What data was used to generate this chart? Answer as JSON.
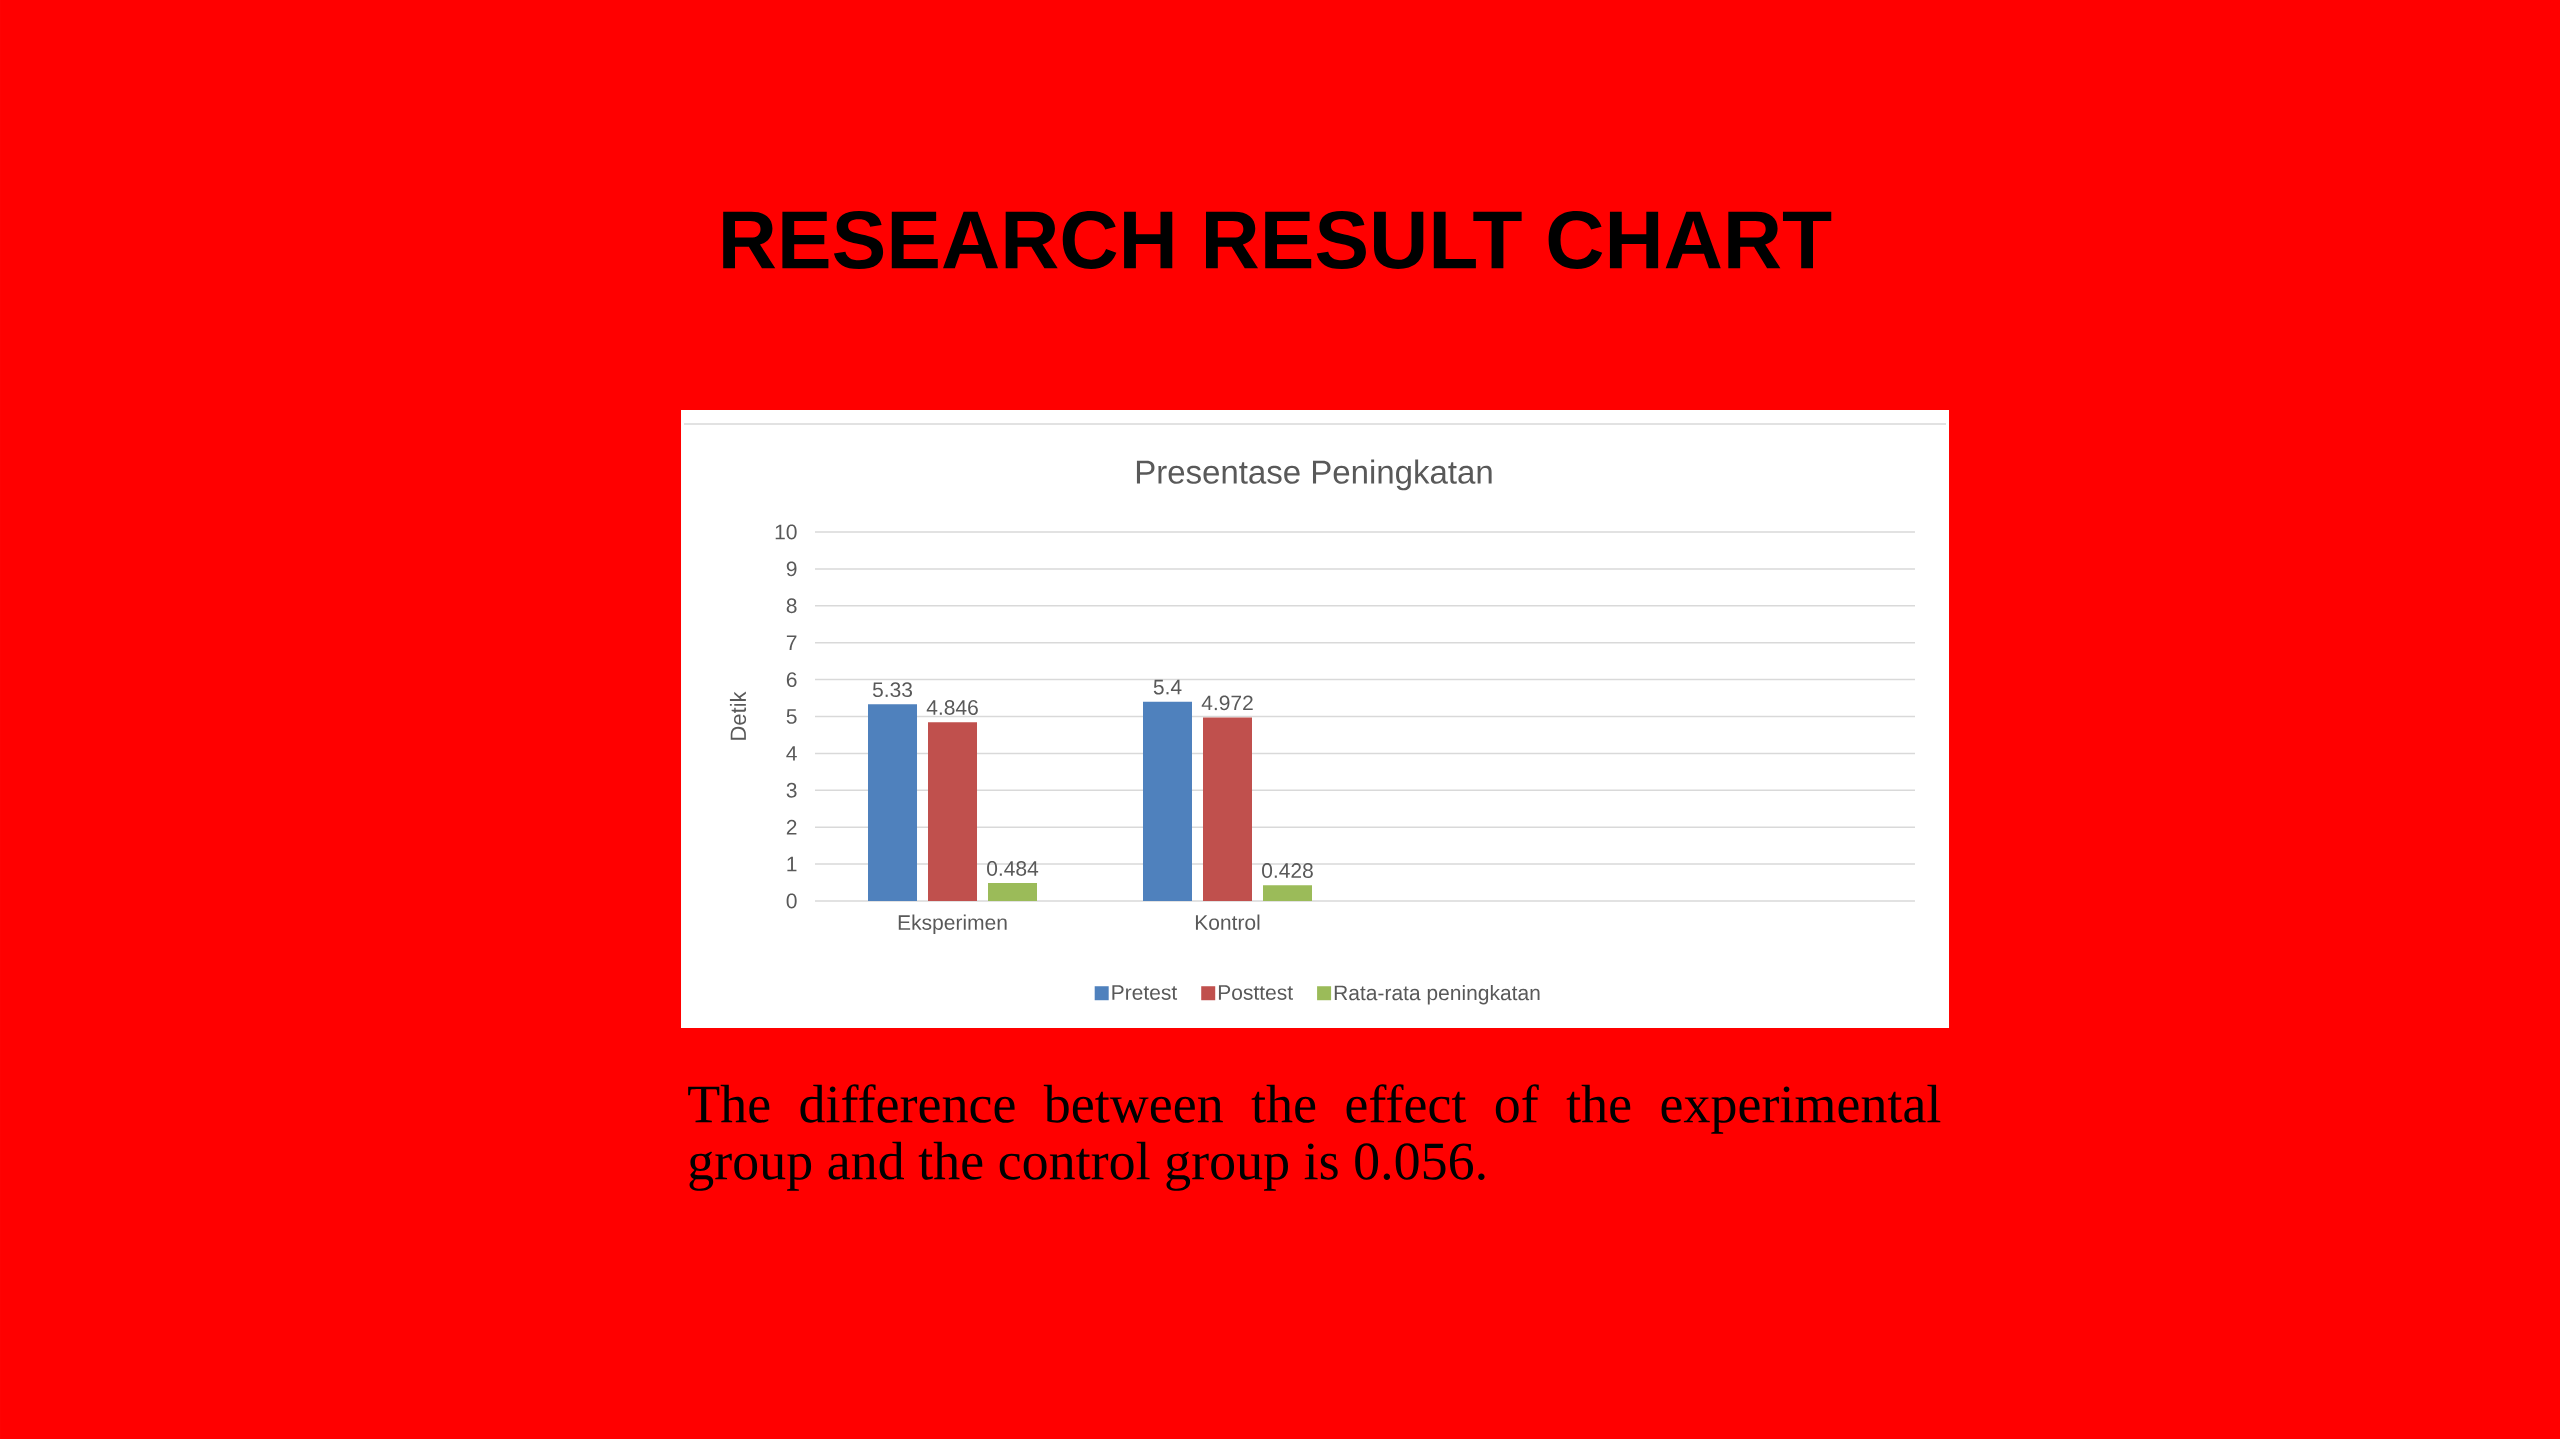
{
  "chart_data": {
    "type": "bar",
    "title": "RESEARCH RESULT CHART",
    "subtitle": "Presentase Peningkatan",
    "ylabel": "Detik",
    "categories": [
      "Eksperimen",
      "Kontrol",
      null,
      null
    ],
    "series": [
      {
        "name": "Pretest",
        "color": "#4f81bd",
        "values": [
          5.33,
          5.4,
          null,
          null
        ]
      },
      {
        "name": "Posttest",
        "color": "#c0504d",
        "values": [
          4.846,
          4.972,
          null,
          null
        ]
      },
      {
        "name": "Rata-rata peningkatan",
        "color": "#9bbb59",
        "values": [
          0.484,
          0.428,
          null,
          null
        ]
      }
    ],
    "ylim": [
      0,
      10
    ],
    "yticks": [
      0,
      1,
      2,
      3,
      4,
      5,
      6,
      7,
      8,
      9,
      10
    ],
    "grid": "y",
    "legend": "bottom",
    "data_labels": true,
    "annotations": [
      "The difference between the effect of the experimental group and the control group is 0.056."
    ]
  }
}
